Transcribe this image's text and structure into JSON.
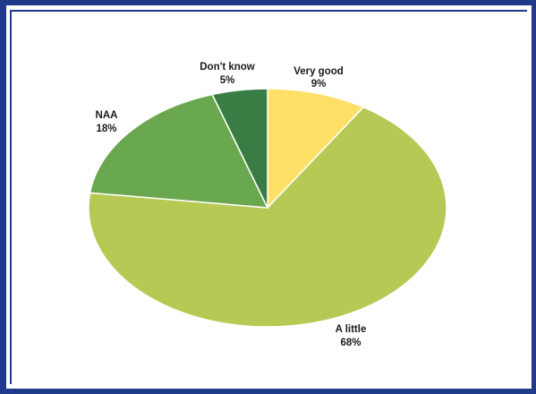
{
  "chart_data": {
    "type": "pie",
    "title": "",
    "slices": [
      {
        "label": "Very good",
        "value": 9,
        "pct_label": "9%",
        "color": "#ffe066"
      },
      {
        "label": "A little",
        "value": 68,
        "pct_label": "68%",
        "color": "#b7c955"
      },
      {
        "label": "NAA",
        "value": 18,
        "pct_label": "18%",
        "color": "#6aa84f"
      },
      {
        "label": "Don't know",
        "value": 5,
        "pct_label": "5%",
        "color": "#3a7d44"
      }
    ],
    "start": "12 o'clock",
    "direction": "clockwise",
    "legend": "none",
    "labels": "outside, category and percent"
  },
  "colors": {
    "frame": "#1f3a8a",
    "background": "#ffffff"
  }
}
